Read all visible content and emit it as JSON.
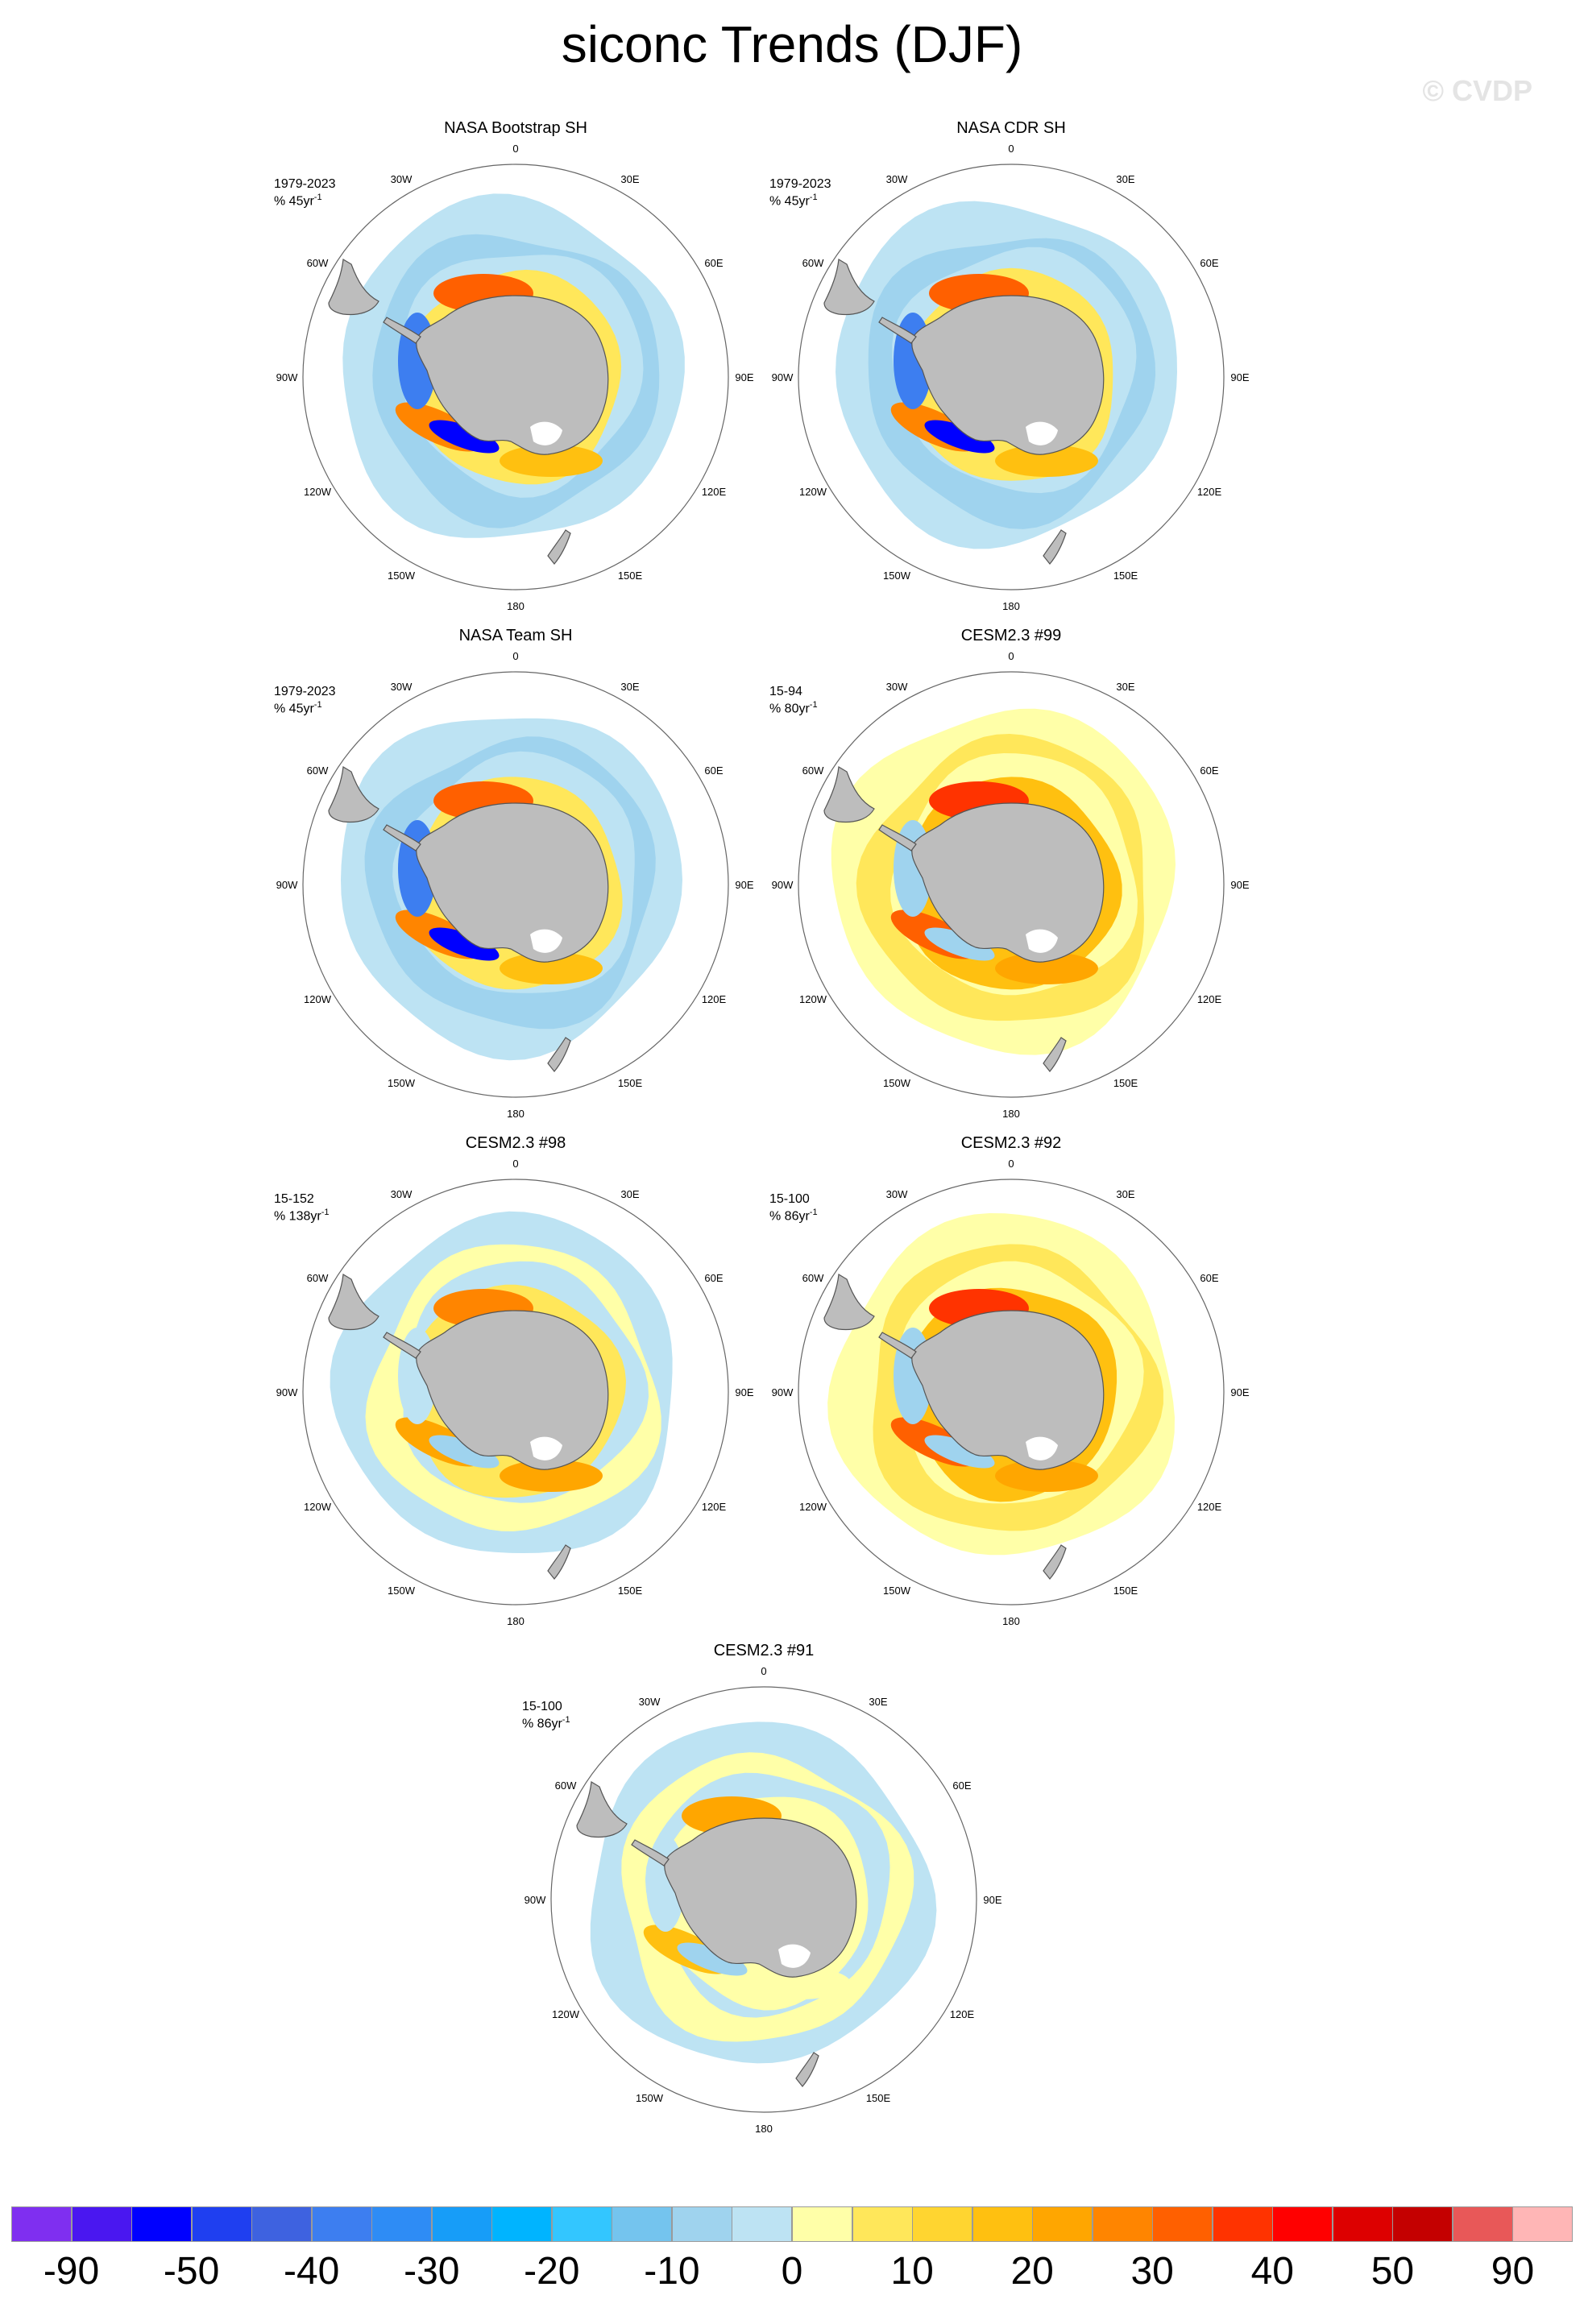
{
  "title": "siconc Trends (DJF)",
  "watermark": "© CVDP",
  "lon_labels": [
    "0",
    "30E",
    "60E",
    "90E",
    "120E",
    "150E",
    "180",
    "150W",
    "120W",
    "90W",
    "60W",
    "30W"
  ],
  "panels": [
    {
      "name": "NASA Bootstrap SH",
      "period": "1979-2023",
      "trend_text": "% 45yr",
      "trend_sup": "-1",
      "pattern": "obs"
    },
    {
      "name": "NASA CDR SH",
      "period": "1979-2023",
      "trend_text": "% 45yr",
      "trend_sup": "-1",
      "pattern": "obs"
    },
    {
      "name": "NASA Team SH",
      "period": "1979-2023",
      "trend_text": "% 45yr",
      "trend_sup": "-1",
      "pattern": "obs"
    },
    {
      "name": "CESM2.3 #99",
      "period": "15-94",
      "trend_text": "% 80yr",
      "trend_sup": "-1",
      "pattern": "warm"
    },
    {
      "name": "CESM2.3 #98",
      "period": "15-152",
      "trend_text": "% 138yr",
      "trend_sup": "-1",
      "pattern": "mixed"
    },
    {
      "name": "CESM2.3 #92",
      "period": "15-100",
      "trend_text": "% 86yr",
      "trend_sup": "-1",
      "pattern": "warm"
    },
    {
      "name": "CESM2.3 #91",
      "period": "15-100",
      "trend_text": "% 86yr",
      "trend_sup": "-1",
      "pattern": "cool"
    }
  ],
  "colorbar": {
    "colors": [
      "#7f2ff0",
      "#4a17f0",
      "#0000ff",
      "#1f3ff0",
      "#3e62e0",
      "#3d7ef0",
      "#2e8cf5",
      "#179df8",
      "#00b4ff",
      "#33c6ff",
      "#74c4ee",
      "#9fd3ee",
      "#bde3f3",
      "#ffffa8",
      "#ffe75a",
      "#ffd530",
      "#ffc010",
      "#ffa600",
      "#ff8500",
      "#ff6000",
      "#ff3300",
      "#ff0000",
      "#dd0000",
      "#c40000",
      "#e85858",
      "#ffb6b6"
    ],
    "labels": [
      "-90",
      "-50",
      "-40",
      "-30",
      "-20",
      "-10",
      "0",
      "10",
      "20",
      "30",
      "40",
      "50",
      "90"
    ]
  }
}
